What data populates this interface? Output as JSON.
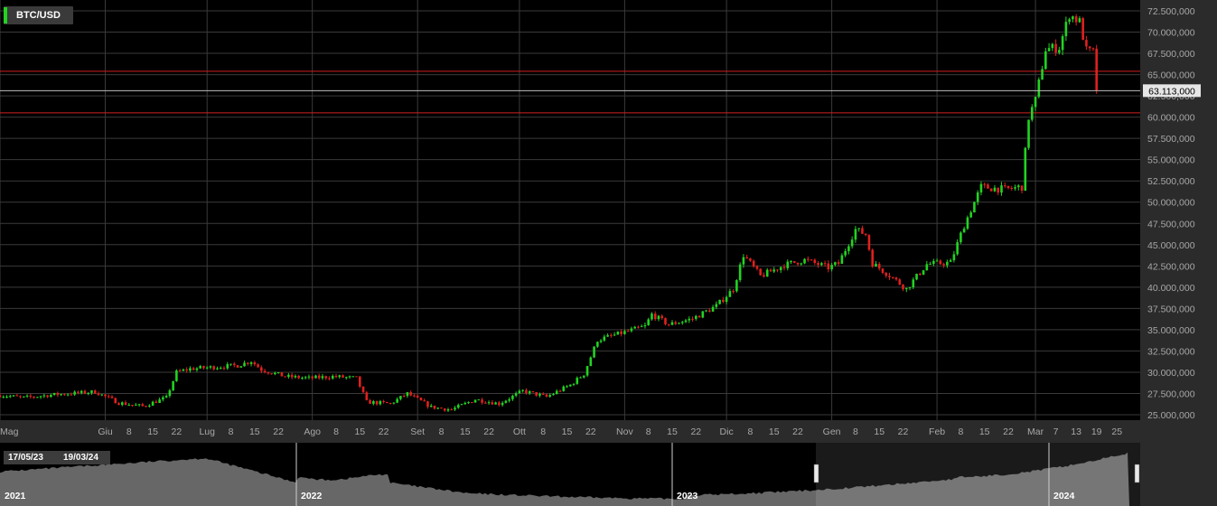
{
  "symbol": "BTC/USD",
  "last_price_label": "63.113,000",
  "navigator": {
    "start_label": "17/05/23",
    "end_label": "19/03/24",
    "years": [
      "2021",
      "2022",
      "2023",
      "2024"
    ]
  },
  "colors": {
    "up": "#22d322",
    "down": "#e0201e",
    "grid": "#3a3a3a",
    "level": "#d11f1f"
  },
  "chart_data": {
    "type": "candlestick",
    "title": "BTC/USD",
    "ylim": [
      24500,
      73500
    ],
    "x_range": [
      "2023-05-01",
      "2024-03-26"
    ],
    "y_ticks": [
      {
        "v": 25000,
        "label": "25.000,000"
      },
      {
        "v": 27500,
        "label": "27.500,000"
      },
      {
        "v": 30000,
        "label": "30.000,000"
      },
      {
        "v": 32500,
        "label": "32.500,000"
      },
      {
        "v": 35000,
        "label": "35.000,000"
      },
      {
        "v": 37500,
        "label": "37.500,000"
      },
      {
        "v": 40000,
        "label": "40.000,000"
      },
      {
        "v": 42500,
        "label": "42.500,000"
      },
      {
        "v": 45000,
        "label": "45.000,000"
      },
      {
        "v": 47500,
        "label": "47.500,000"
      },
      {
        "v": 50000,
        "label": "50.000,000"
      },
      {
        "v": 52500,
        "label": "52.500,000"
      },
      {
        "v": 55000,
        "label": "55.000,000"
      },
      {
        "v": 57500,
        "label": "57.500,000"
      },
      {
        "v": 60000,
        "label": "60.000,000"
      },
      {
        "v": 62500,
        "label": "62.500,000"
      },
      {
        "v": 65000,
        "label": "65.000,000"
      },
      {
        "v": 67500,
        "label": "67.500,000"
      },
      {
        "v": 70000,
        "label": "70.000,000"
      },
      {
        "v": 72500,
        "label": "72.500,000"
      }
    ],
    "x_ticks": [
      {
        "date": "2023-05-01",
        "label": "Mag"
      },
      {
        "date": "2023-06-01",
        "label": "Giu"
      },
      {
        "date": "2023-06-08",
        "label": "8"
      },
      {
        "date": "2023-06-15",
        "label": "15"
      },
      {
        "date": "2023-06-22",
        "label": "22"
      },
      {
        "date": "2023-07-01",
        "label": "Lug"
      },
      {
        "date": "2023-07-08",
        "label": "8"
      },
      {
        "date": "2023-07-15",
        "label": "15"
      },
      {
        "date": "2023-07-22",
        "label": "22"
      },
      {
        "date": "2023-08-01",
        "label": "Ago"
      },
      {
        "date": "2023-08-08",
        "label": "8"
      },
      {
        "date": "2023-08-15",
        "label": "15"
      },
      {
        "date": "2023-08-22",
        "label": "22"
      },
      {
        "date": "2023-09-01",
        "label": "Set"
      },
      {
        "date": "2023-09-08",
        "label": "8"
      },
      {
        "date": "2023-09-15",
        "label": "15"
      },
      {
        "date": "2023-09-22",
        "label": "22"
      },
      {
        "date": "2023-10-01",
        "label": "Ott"
      },
      {
        "date": "2023-10-08",
        "label": "8"
      },
      {
        "date": "2023-10-15",
        "label": "15"
      },
      {
        "date": "2023-10-22",
        "label": "22"
      },
      {
        "date": "2023-11-01",
        "label": "Nov"
      },
      {
        "date": "2023-11-08",
        "label": "8"
      },
      {
        "date": "2023-11-15",
        "label": "15"
      },
      {
        "date": "2023-11-22",
        "label": "22"
      },
      {
        "date": "2023-12-01",
        "label": "Dic"
      },
      {
        "date": "2023-12-08",
        "label": "8"
      },
      {
        "date": "2023-12-15",
        "label": "15"
      },
      {
        "date": "2023-12-22",
        "label": "22"
      },
      {
        "date": "2024-01-01",
        "label": "Gen"
      },
      {
        "date": "2024-01-08",
        "label": "8"
      },
      {
        "date": "2024-01-15",
        "label": "15"
      },
      {
        "date": "2024-01-22",
        "label": "22"
      },
      {
        "date": "2024-02-01",
        "label": "Feb"
      },
      {
        "date": "2024-02-08",
        "label": "8"
      },
      {
        "date": "2024-02-15",
        "label": "15"
      },
      {
        "date": "2024-02-22",
        "label": "22"
      },
      {
        "date": "2024-03-01",
        "label": "Mar"
      },
      {
        "date": "2024-03-07",
        "label": "7"
      },
      {
        "date": "2024-03-13",
        "label": "13"
      },
      {
        "date": "2024-03-19",
        "label": "19"
      },
      {
        "date": "2024-03-25",
        "label": "25"
      }
    ],
    "level_lines": [
      65400,
      60500
    ],
    "last_price": 63113,
    "close_series": [
      {
        "date": "2023-05-01",
        "close": 27300
      },
      {
        "date": "2023-05-08",
        "close": 27000
      },
      {
        "date": "2023-05-15",
        "close": 27300
      },
      {
        "date": "2023-05-22",
        "close": 27500
      },
      {
        "date": "2023-05-29",
        "close": 27700
      },
      {
        "date": "2023-06-05",
        "close": 26400
      },
      {
        "date": "2023-06-12",
        "close": 26000
      },
      {
        "date": "2023-06-19",
        "close": 27000
      },
      {
        "date": "2023-06-22",
        "close": 30000
      },
      {
        "date": "2023-06-26",
        "close": 30400
      },
      {
        "date": "2023-07-03",
        "close": 30600
      },
      {
        "date": "2023-07-10",
        "close": 30800
      },
      {
        "date": "2023-07-14",
        "close": 31300
      },
      {
        "date": "2023-07-17",
        "close": 30300
      },
      {
        "date": "2023-07-24",
        "close": 29500
      },
      {
        "date": "2023-07-31",
        "close": 29300
      },
      {
        "date": "2023-08-07",
        "close": 29500
      },
      {
        "date": "2023-08-14",
        "close": 29300
      },
      {
        "date": "2023-08-17",
        "close": 26500
      },
      {
        "date": "2023-08-24",
        "close": 26300
      },
      {
        "date": "2023-08-29",
        "close": 27500
      },
      {
        "date": "2023-09-05",
        "close": 25900
      },
      {
        "date": "2023-09-11",
        "close": 25600
      },
      {
        "date": "2023-09-18",
        "close": 26800
      },
      {
        "date": "2023-09-25",
        "close": 26300
      },
      {
        "date": "2023-10-02",
        "close": 27800
      },
      {
        "date": "2023-10-09",
        "close": 27100
      },
      {
        "date": "2023-10-16",
        "close": 28500
      },
      {
        "date": "2023-10-20",
        "close": 29800
      },
      {
        "date": "2023-10-24",
        "close": 33800
      },
      {
        "date": "2023-10-31",
        "close": 34600
      },
      {
        "date": "2023-11-07",
        "close": 35400
      },
      {
        "date": "2023-11-09",
        "close": 36800
      },
      {
        "date": "2023-11-14",
        "close": 35600
      },
      {
        "date": "2023-11-21",
        "close": 36300
      },
      {
        "date": "2023-11-28",
        "close": 37800
      },
      {
        "date": "2023-12-03",
        "close": 39800
      },
      {
        "date": "2023-12-06",
        "close": 43800
      },
      {
        "date": "2023-12-11",
        "close": 41300
      },
      {
        "date": "2023-12-18",
        "close": 42600
      },
      {
        "date": "2023-12-24",
        "close": 43200
      },
      {
        "date": "2023-12-31",
        "close": 42300
      },
      {
        "date": "2024-01-03",
        "close": 42800
      },
      {
        "date": "2024-01-08",
        "close": 46800
      },
      {
        "date": "2024-01-11",
        "close": 46200
      },
      {
        "date": "2024-01-13",
        "close": 42800
      },
      {
        "date": "2024-01-18",
        "close": 41400
      },
      {
        "date": "2024-01-23",
        "close": 39800
      },
      {
        "date": "2024-01-29",
        "close": 42700
      },
      {
        "date": "2024-02-05",
        "close": 42900
      },
      {
        "date": "2024-02-09",
        "close": 47300
      },
      {
        "date": "2024-02-14",
        "close": 51800
      },
      {
        "date": "2024-02-21",
        "close": 51500
      },
      {
        "date": "2024-02-26",
        "close": 51800
      },
      {
        "date": "2024-02-28",
        "close": 60000
      },
      {
        "date": "2024-03-01",
        "close": 62000
      },
      {
        "date": "2024-03-04",
        "close": 68000
      },
      {
        "date": "2024-03-08",
        "close": 68200
      },
      {
        "date": "2024-03-11",
        "close": 72100
      },
      {
        "date": "2024-03-14",
        "close": 71200
      },
      {
        "date": "2024-03-16",
        "close": 67800
      },
      {
        "date": "2024-03-18",
        "close": 67600
      },
      {
        "date": "2024-03-19",
        "close": 63113
      }
    ]
  }
}
